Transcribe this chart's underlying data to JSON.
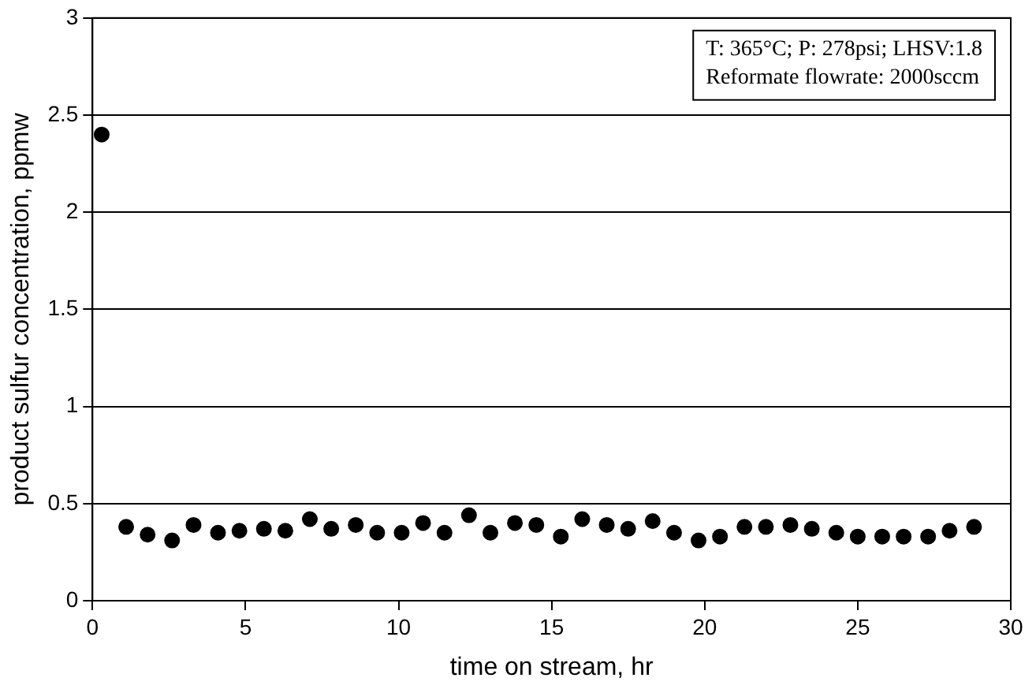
{
  "chart_data": {
    "type": "scatter",
    "xlabel": "time on stream, hr",
    "ylabel": "product sulfur concentration, ppmw",
    "x": [
      0.3,
      1.1,
      1.8,
      2.6,
      3.3,
      4.1,
      4.8,
      5.6,
      6.3,
      7.1,
      7.8,
      8.6,
      9.3,
      10.1,
      10.8,
      11.5,
      12.3,
      13.0,
      13.8,
      14.5,
      15.3,
      16.0,
      16.8,
      17.5,
      18.3,
      19.0,
      19.8,
      20.5,
      21.3,
      22.0,
      22.8,
      23.5,
      24.3,
      25.0,
      25.8,
      26.5,
      27.3,
      28.0,
      28.8
    ],
    "series": [
      {
        "color": "#000000",
        "values": [
          2.4,
          0.38,
          0.34,
          0.31,
          0.39,
          0.35,
          0.36,
          0.37,
          0.36,
          0.42,
          0.37,
          0.39,
          0.35,
          0.35,
          0.4,
          0.35,
          0.44,
          0.35,
          0.4,
          0.39,
          0.33,
          0.42,
          0.39,
          0.37,
          0.41,
          0.35,
          0.31,
          0.33,
          0.38,
          0.38,
          0.39,
          0.37,
          0.35,
          0.33,
          0.33,
          0.33,
          0.33,
          0.36,
          0.38
        ]
      }
    ],
    "xlim": [
      0,
      30
    ],
    "xticks": [
      0,
      5,
      10,
      15,
      20,
      25,
      30
    ],
    "ylim": [
      0,
      3
    ],
    "yticks": [
      0,
      0.5,
      1,
      1.5,
      2,
      2.5,
      3
    ],
    "grid": "y",
    "marker": "circle",
    "legend": false,
    "annotations": [
      "T: 365°C; P: 278psi; LHSV:1.8",
      "Reformate flowrate: 2000sccm"
    ]
  }
}
